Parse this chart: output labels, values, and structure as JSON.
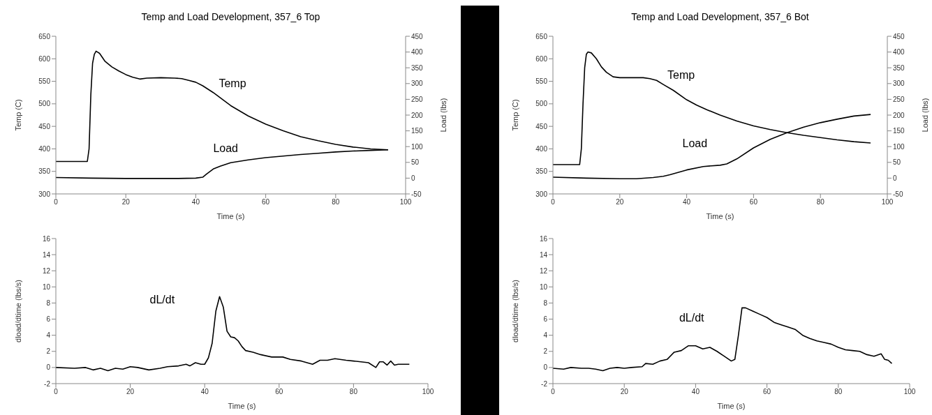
{
  "chart_data": [
    {
      "type": "line",
      "title": "Temp and Load Development, 357_6 Top",
      "xlabel": "Time (s)",
      "ylabel": "Temp (C)",
      "y2label": "Load (lbs)",
      "xlim": [
        0,
        100
      ],
      "xticks": [
        0,
        20,
        40,
        60,
        80,
        100
      ],
      "ylim": [
        300,
        650
      ],
      "yticks": [
        300,
        350,
        400,
        450,
        500,
        550,
        600,
        650
      ],
      "y2lim": [
        -50,
        450
      ],
      "y2ticks": [
        -50,
        0,
        50,
        100,
        150,
        200,
        250,
        300,
        350,
        400,
        450
      ],
      "marker": "none",
      "series": [
        {
          "name": "Temp",
          "color": "#000000",
          "x": [
            0,
            9,
            9.5,
            10,
            10.5,
            11,
            11.5,
            12.5,
            14,
            16,
            18,
            20,
            22,
            24,
            26,
            30,
            34,
            36,
            38,
            40,
            42,
            45,
            50,
            55,
            60,
            65,
            70,
            75,
            80,
            85,
            90,
            95
          ],
          "values": [
            372,
            372,
            400,
            520,
            590,
            610,
            617,
            612,
            595,
            582,
            573,
            565,
            559,
            555,
            557,
            558,
            557,
            556,
            552,
            548,
            540,
            525,
            496,
            473,
            455,
            440,
            427,
            418,
            410,
            404,
            400,
            398
          ]
        },
        {
          "name": "Load",
          "color": "#000000",
          "axis": "y2",
          "x": [
            0,
            10,
            20,
            30,
            35,
            40,
            42,
            43,
            45,
            47,
            50,
            55,
            60,
            65,
            70,
            75,
            80,
            85,
            90,
            95
          ],
          "values": [
            2,
            0,
            -1,
            -1,
            -1,
            0,
            3,
            12,
            29,
            38,
            49,
            58,
            65,
            70,
            75,
            79,
            83,
            86,
            88,
            90
          ]
        }
      ]
    },
    {
      "type": "line",
      "title": "Temp and Load Development, 357_6 Bot",
      "xlabel": "Time (s)",
      "ylabel": "Temp (C)",
      "y2label": "Load (lbs)",
      "xlim": [
        0,
        100
      ],
      "xticks": [
        0,
        20,
        40,
        60,
        80,
        100
      ],
      "ylim": [
        300,
        650
      ],
      "yticks": [
        300,
        350,
        400,
        450,
        500,
        550,
        600,
        650
      ],
      "y2lim": [
        -50,
        450
      ],
      "y2ticks": [
        -50,
        0,
        50,
        100,
        150,
        200,
        250,
        300,
        350,
        400,
        450
      ],
      "marker": "none",
      "series": [
        {
          "name": "Temp",
          "color": "#000000",
          "x": [
            0,
            8,
            8.5,
            9,
            9.5,
            10,
            10.5,
            11.5,
            13,
            14.5,
            16,
            18,
            20,
            24,
            27,
            29,
            31,
            33,
            36,
            40,
            43,
            46,
            50,
            55,
            60,
            65,
            70,
            75,
            80,
            85,
            90,
            95
          ],
          "values": [
            365,
            365,
            400,
            500,
            580,
            610,
            615,
            613,
            600,
            582,
            570,
            560,
            558,
            558,
            558,
            556,
            552,
            543,
            530,
            509,
            497,
            487,
            475,
            462,
            451,
            443,
            436,
            430,
            425,
            420,
            416,
            413
          ]
        },
        {
          "name": "Load",
          "color": "#000000",
          "axis": "y2",
          "x": [
            0,
            10,
            20,
            25,
            30,
            33,
            35,
            40,
            45,
            50,
            52,
            55,
            60,
            65,
            70,
            75,
            80,
            85,
            90,
            95
          ],
          "values": [
            3,
            0,
            -2,
            -2,
            2,
            6,
            11,
            26,
            37,
            41,
            45,
            61,
            96,
            123,
            144,
            162,
            176,
            187,
            197,
            202
          ]
        }
      ]
    },
    {
      "type": "line",
      "xlabel": "Time (s)",
      "ylabel": "dload/dtime (lbs/s)",
      "xlim": [
        0,
        100
      ],
      "xticks": [
        0,
        20,
        40,
        60,
        80,
        100
      ],
      "ylim": [
        -2,
        16
      ],
      "yticks": [
        -2,
        0,
        2,
        4,
        6,
        8,
        10,
        12,
        14,
        16
      ],
      "marker": "none",
      "series": [
        {
          "name": "dL/dt",
          "color": "#000000",
          "x": [
            0,
            5,
            8,
            10,
            12,
            14,
            16,
            18,
            20,
            22,
            25,
            28,
            30,
            33,
            35,
            36,
            37.5,
            39,
            40,
            41,
            42,
            43,
            44,
            45,
            46,
            47,
            48,
            49,
            50,
            51,
            53,
            55,
            58,
            61,
            63,
            66,
            69,
            71,
            73,
            75,
            78,
            80,
            82,
            84,
            86,
            87,
            88,
            89,
            90,
            91,
            92,
            95
          ],
          "values": [
            0,
            -0.1,
            0,
            -0.3,
            -0.1,
            -0.4,
            -0.1,
            -0.2,
            0.1,
            0,
            -0.3,
            -0.1,
            0.1,
            0.2,
            0.4,
            0.2,
            0.6,
            0.4,
            0.4,
            1.2,
            3,
            7,
            8.8,
            7.5,
            4.5,
            3.8,
            3.7,
            3.3,
            2.6,
            2.1,
            1.9,
            1.6,
            1.3,
            1.3,
            1,
            0.8,
            0.4,
            0.9,
            0.9,
            1.1,
            0.9,
            0.8,
            0.7,
            0.6,
            0,
            0.7,
            0.7,
            0.3,
            0.8,
            0.3,
            0.4,
            0.4
          ]
        }
      ]
    },
    {
      "type": "line",
      "xlabel": "Time (s)",
      "ylabel": "dload/dtime (lbs/s)",
      "xlim": [
        0,
        100
      ],
      "xticks": [
        0,
        20,
        40,
        60,
        80,
        100
      ],
      "ylim": [
        -2,
        16
      ],
      "yticks": [
        -2,
        0,
        2,
        4,
        6,
        8,
        10,
        12,
        14,
        16
      ],
      "marker": "none",
      "series": [
        {
          "name": "dL/dt",
          "color": "#000000",
          "x": [
            0,
            3,
            5,
            8,
            10,
            12,
            14,
            16,
            18,
            20,
            22,
            25,
            26,
            28,
            30,
            32,
            34,
            36,
            38,
            40,
            42,
            44,
            46,
            48,
            50,
            51,
            52,
            53,
            54,
            56,
            58,
            60,
            62,
            64,
            66,
            68,
            70,
            72,
            74,
            76,
            78,
            80,
            82,
            84,
            86,
            88,
            90,
            92,
            93,
            94,
            95
          ],
          "values": [
            -0.1,
            -0.2,
            0,
            -0.1,
            -0.1,
            -0.2,
            -0.4,
            -0.1,
            0,
            -0.1,
            0,
            0.1,
            0.5,
            0.4,
            0.8,
            1,
            1.9,
            2.1,
            2.7,
            2.7,
            2.3,
            2.5,
            2,
            1.4,
            0.8,
            1,
            4,
            7.4,
            7.4,
            7,
            6.6,
            6.2,
            5.6,
            5.3,
            5,
            4.7,
            4,
            3.6,
            3.3,
            3.1,
            2.9,
            2.5,
            2.2,
            2.1,
            2,
            1.6,
            1.4,
            1.7,
            1,
            0.9,
            0.5
          ]
        }
      ]
    }
  ]
}
